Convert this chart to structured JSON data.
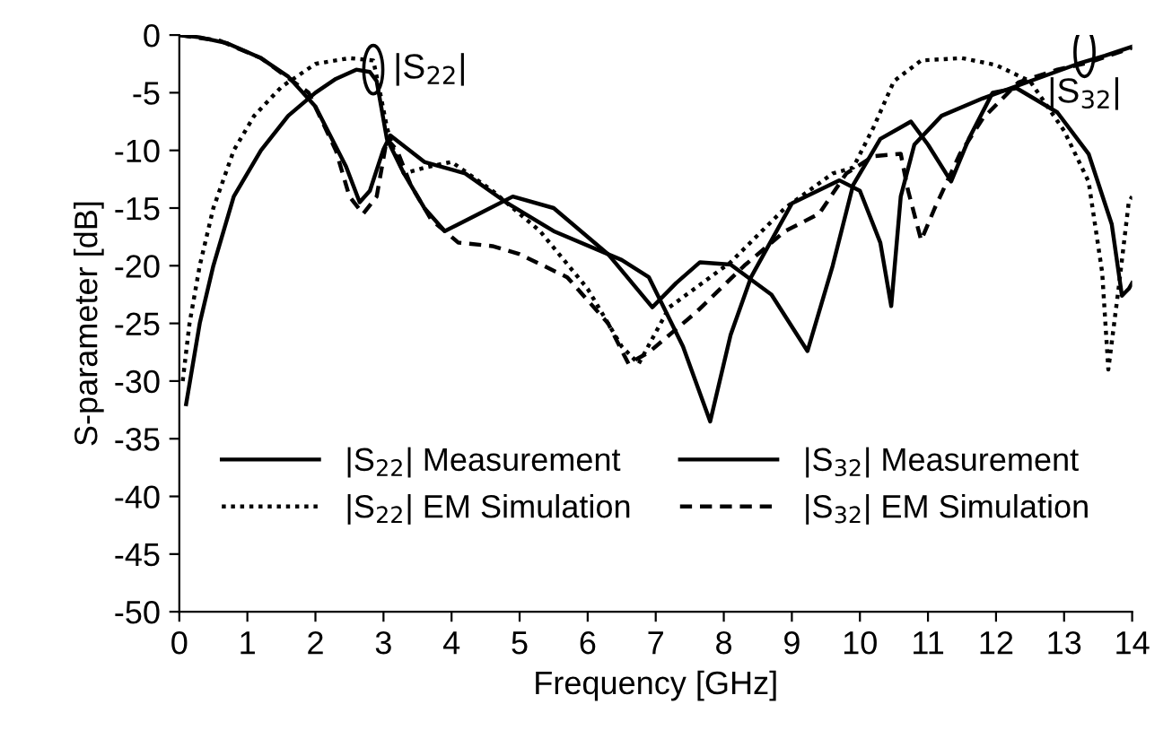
{
  "chart_data": {
    "type": "line",
    "xlabel": "Frequency [GHz]",
    "ylabel": "S-parameter [dB]",
    "xlim": [
      0,
      14
    ],
    "ylim": [
      -50,
      0
    ],
    "xticks": [
      0,
      1,
      2,
      3,
      4,
      5,
      6,
      7,
      8,
      9,
      10,
      11,
      12,
      13,
      14
    ],
    "yticks": [
      0,
      -5,
      -10,
      -15,
      -20,
      -25,
      -30,
      -35,
      -40,
      -45,
      -50
    ],
    "grid": false,
    "legend": "bottom",
    "marker": "none",
    "annotations": [
      {
        "text": "|S$_{22}$|",
        "x": 2.85,
        "y": -3
      },
      {
        "text": "|S$_{32}$|",
        "x": 13.3,
        "y": -1.5
      }
    ],
    "series": [
      {
        "name": "|S$_{22}$| Measurement",
        "color": "#000000",
        "line_style": "solid",
        "x": [
          0.1,
          0.3,
          0.5,
          0.8,
          1.2,
          1.6,
          2.0,
          2.3,
          2.6,
          2.8,
          2.9,
          3.05,
          3.3,
          3.6,
          3.9,
          4.4,
          4.9,
          5.5,
          6.3,
          6.95,
          7.3,
          7.65,
          8.1,
          8.7,
          9.23,
          9.6,
          9.9,
          10.3,
          10.6,
          10.75,
          11.0,
          11.34,
          11.6,
          11.95,
          12.3,
          12.9,
          13.36,
          13.7,
          13.85,
          13.95,
          14.0
        ],
        "values": [
          -32,
          -25,
          -20,
          -14,
          -10,
          -7,
          -5,
          -3.8,
          -3,
          -3.2,
          -4,
          -9,
          -12,
          -15,
          -17,
          -15.5,
          -14,
          -15,
          -19,
          -23.6,
          -21.5,
          -19.7,
          -19.9,
          -22.5,
          -27.4,
          -20,
          -13,
          -9,
          -8,
          -7.5,
          -9.5,
          -12.7,
          -9,
          -5,
          -4.6,
          -6.7,
          -10.3,
          -16.4,
          -22.6,
          -22,
          -21.5
        ]
      },
      {
        "name": "|S$_{22}$| EM Simulation",
        "color": "#000000",
        "line_style": "dotted",
        "x": [
          0.05,
          0.15,
          0.3,
          0.5,
          0.8,
          1.1,
          1.5,
          2.0,
          2.5,
          2.85,
          2.95,
          3.05,
          3.15,
          3.3,
          3.6,
          4.0,
          4.6,
          5.3,
          6.0,
          6.5,
          6.75,
          7.2,
          8.1,
          8.9,
          9.6,
          9.9,
          10.2,
          10.5,
          10.9,
          11.5,
          12.0,
          12.5,
          13.0,
          13.36,
          13.56,
          13.65,
          13.8,
          13.95,
          14.0
        ],
        "values": [
          -30,
          -25,
          -20,
          -15,
          -10,
          -7,
          -4.5,
          -2.5,
          -2,
          -2.2,
          -5,
          -8,
          -10,
          -12,
          -11.5,
          -11,
          -13.5,
          -17,
          -22,
          -27,
          -28.5,
          -23.6,
          -19.7,
          -15,
          -12,
          -11.5,
          -8,
          -4,
          -2.2,
          -2,
          -2.6,
          -4,
          -8.3,
          -12.7,
          -20.6,
          -29,
          -22,
          -14.5,
          -14
        ]
      },
      {
        "name": "|S$_{32}$| Measurement",
        "color": "#000000",
        "line_style": "solid",
        "x": [
          0,
          0.3,
          0.7,
          1.2,
          1.6,
          2.0,
          2.45,
          2.65,
          2.8,
          3.0,
          3.1,
          3.6,
          4.2,
          4.8,
          5.5,
          6.5,
          6.9,
          7.4,
          7.8,
          8.1,
          8.4,
          9.0,
          9.7,
          10.0,
          10.3,
          10.46,
          10.6,
          10.8,
          11.2,
          11.8,
          12.5,
          13.2,
          13.6,
          14.0
        ],
        "values": [
          0,
          -0.2,
          -0.7,
          -2,
          -3.6,
          -6.2,
          -11.4,
          -14.5,
          -13.5,
          -9.9,
          -8.7,
          -11,
          -12,
          -14.5,
          -17,
          -19.5,
          -21,
          -27,
          -33.5,
          -26,
          -21,
          -14.6,
          -12.6,
          -13.5,
          -18,
          -23.5,
          -14,
          -9.5,
          -7,
          -5.5,
          -4,
          -2.5,
          -1.8,
          -1
        ]
      },
      {
        "name": "|S$_{32}$| EM Simulation",
        "color": "#000000",
        "line_style": "dashed",
        "x": [
          0,
          0.6,
          1.2,
          1.9,
          2.3,
          2.5,
          2.7,
          2.9,
          3.05,
          3.2,
          3.4,
          3.7,
          4.1,
          4.6,
          5.0,
          5.7,
          6.3,
          6.6,
          6.9,
          7.6,
          8.3,
          8.9,
          9.4,
          9.8,
          10.2,
          10.6,
          10.7,
          10.9,
          11.1,
          11.47,
          11.81,
          12.33,
          12.9,
          13.36,
          13.9,
          14.0
        ],
        "values": [
          0,
          -0.5,
          -2,
          -5,
          -10,
          -14,
          -15.5,
          -14,
          -9,
          -10,
          -13,
          -16,
          -18,
          -18.3,
          -19,
          -21,
          -25,
          -28.5,
          -27.5,
          -24,
          -20,
          -17,
          -15.5,
          -12,
          -10.5,
          -10.3,
          -13.3,
          -17.8,
          -15,
          -10.3,
          -7.2,
          -4.1,
          -3,
          -2.4,
          -1.3,
          -1.1
        ]
      }
    ]
  }
}
